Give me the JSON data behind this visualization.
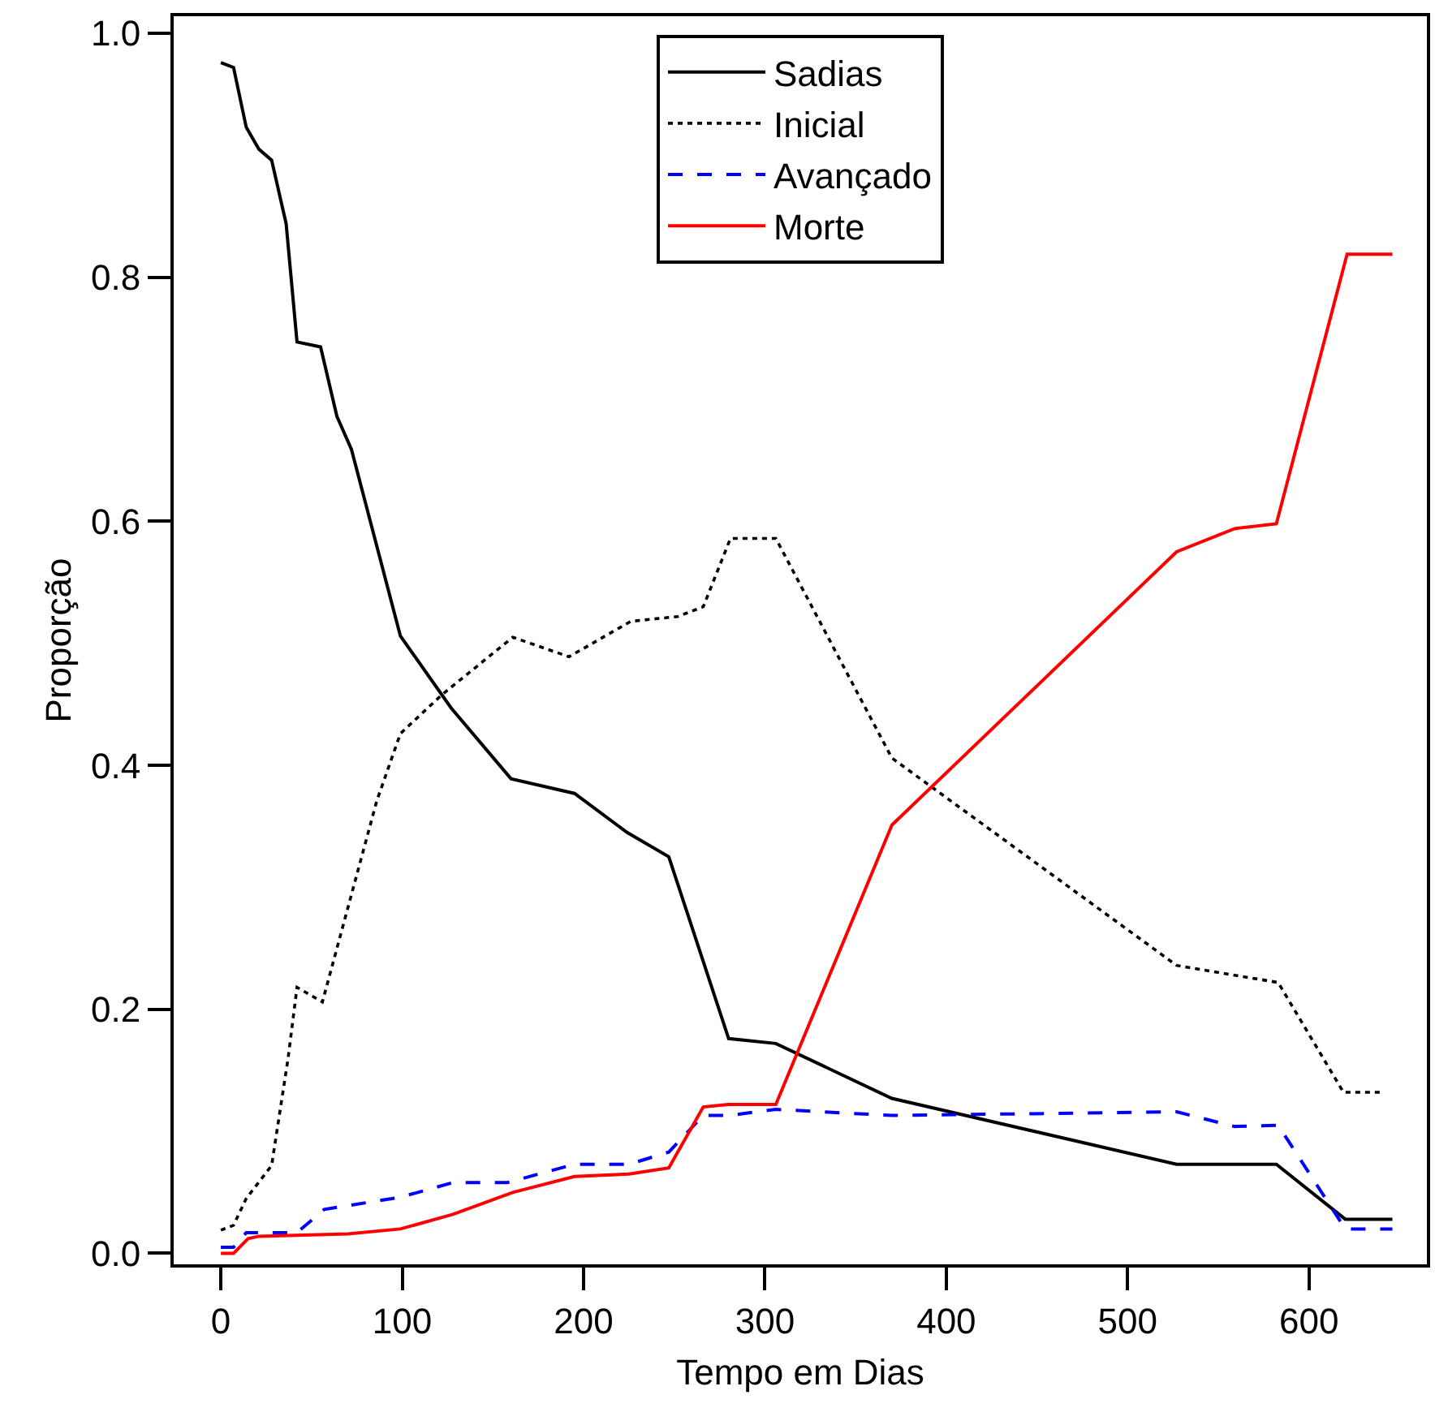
{
  "chart_data": {
    "type": "line",
    "xlabel": "Tempo em Dias",
    "ylabel": "Proporção",
    "xlim": [
      -26,
      665
    ],
    "ylim": [
      -0.009,
      1.014
    ],
    "xticks": [
      0,
      100,
      200,
      300,
      400,
      500,
      600
    ],
    "yticks": [
      {
        "value": 0,
        "label": "0.0"
      },
      0.2,
      0.4,
      0.6,
      0.8,
      {
        "value": 1,
        "label": "1.0"
      }
    ],
    "legend": "top",
    "marker": "none",
    "series": [
      {
        "name": "Sadias",
        "color": "#000000",
        "line_style": "solid",
        "x": [
          0,
          7,
          14,
          21,
          28,
          36,
          42,
          55,
          64,
          72,
          99,
          127,
          160,
          195,
          224,
          247,
          280,
          306,
          370,
          527,
          582,
          620,
          646
        ],
        "values": [
          0.976,
          0.972,
          0.923,
          0.905,
          0.896,
          0.844,
          0.747,
          0.743,
          0.686,
          0.659,
          0.506,
          0.447,
          0.389,
          0.377,
          0.345,
          0.325,
          0.176,
          0.172,
          0.127,
          0.073,
          0.073,
          0.028,
          0.028
        ]
      },
      {
        "name": "Inicial",
        "color": "#000000",
        "line_style": "dotted",
        "x": [
          0,
          7,
          14,
          28,
          37,
          42,
          56,
          86,
          99,
          122,
          161,
          192,
          226,
          252,
          266,
          281,
          306,
          370,
          527,
          583,
          619,
          641
        ],
        "values": [
          0.019,
          0.023,
          0.045,
          0.072,
          0.159,
          0.218,
          0.206,
          0.371,
          0.426,
          0.458,
          0.505,
          0.489,
          0.518,
          0.522,
          0.53,
          0.586,
          0.586,
          0.406,
          0.236,
          0.222,
          0.132,
          0.132
        ]
      },
      {
        "name": "Avançado",
        "color": "#0000ff",
        "line_style": "dashed",
        "x": [
          0,
          7,
          14,
          42,
          57,
          99,
          128,
          158,
          195,
          225,
          247,
          266,
          280,
          306,
          370,
          527,
          559,
          583,
          620,
          646
        ],
        "values": [
          0.005,
          0.005,
          0.017,
          0.017,
          0.036,
          0.046,
          0.058,
          0.058,
          0.073,
          0.073,
          0.083,
          0.113,
          0.113,
          0.118,
          0.113,
          0.116,
          0.104,
          0.105,
          0.02,
          0.02
        ]
      },
      {
        "name": "Morte",
        "color": "#ff0000",
        "line_style": "solid",
        "x": [
          0,
          7,
          15,
          21,
          70,
          99,
          128,
          161,
          195,
          225,
          247,
          266,
          280,
          306,
          370,
          527,
          559,
          582,
          621,
          646
        ],
        "values": [
          0.0,
          0.0,
          0.012,
          0.014,
          0.016,
          0.02,
          0.032,
          0.05,
          0.063,
          0.065,
          0.07,
          0.12,
          0.122,
          0.122,
          0.351,
          0.575,
          0.594,
          0.598,
          0.819,
          0.819
        ]
      }
    ]
  }
}
